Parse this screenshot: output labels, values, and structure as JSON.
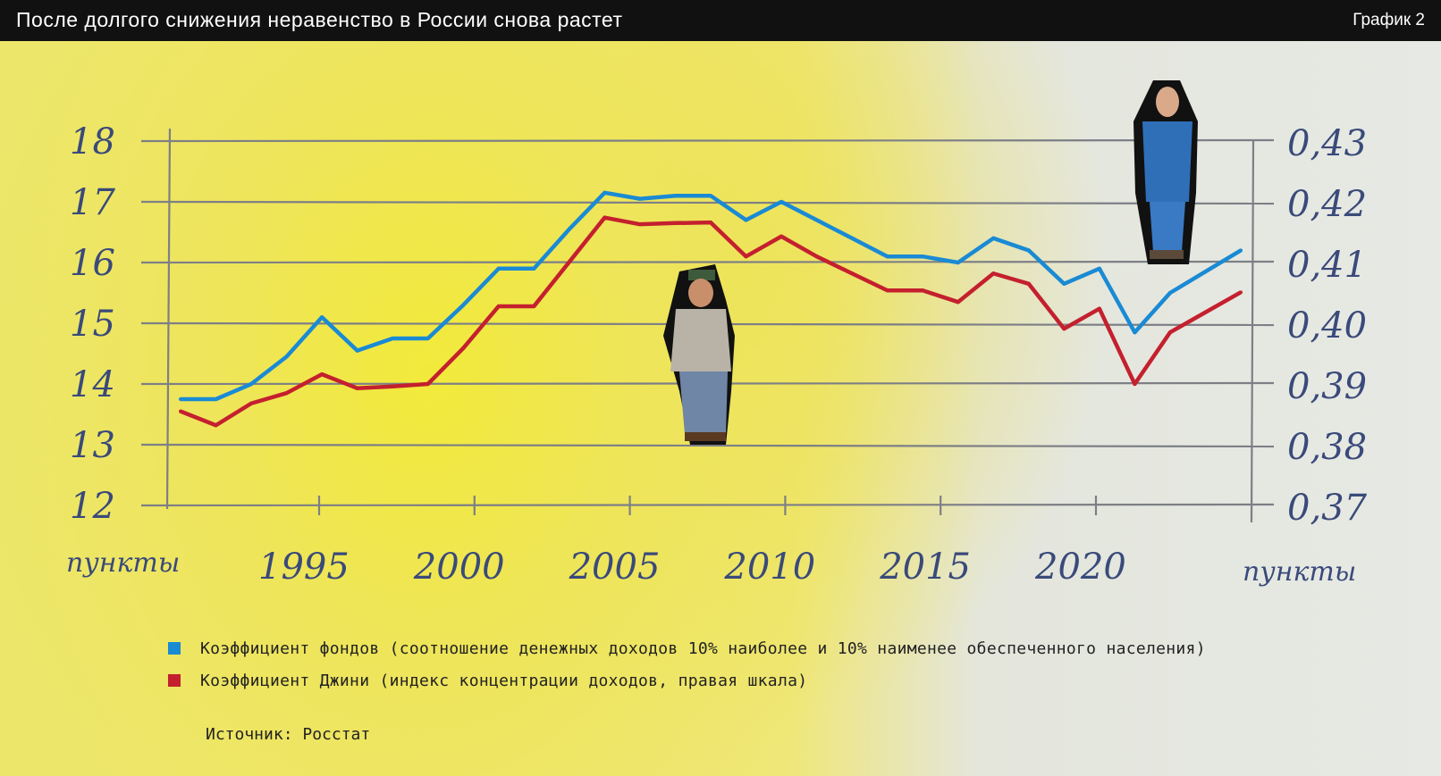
{
  "header": {
    "title": "После долгого снижения неравенство в России снова растет",
    "chart_number": "График 2"
  },
  "chart_data": {
    "type": "line",
    "x": [
      1993,
      1994,
      1995,
      1996,
      1997,
      1998,
      1999,
      2000,
      2001,
      2002,
      2003,
      2004,
      2005,
      2006,
      2007,
      2008,
      2009,
      2010,
      2011,
      2012,
      2013,
      2014,
      2015,
      2016,
      2017,
      2018,
      2019,
      2020,
      2021,
      2022,
      2023
    ],
    "x_ticks": [
      "1995",
      "2000",
      "2005",
      "2010",
      "2015",
      "2020"
    ],
    "y_left": {
      "label": "пункты",
      "ticks": [
        "12",
        "13",
        "14",
        "15",
        "16",
        "17",
        "18"
      ],
      "range": [
        12,
        18
      ]
    },
    "y_right": {
      "label": "пункты",
      "ticks": [
        "0,37",
        "0,38",
        "0,39",
        "0,40",
        "0,41",
        "0,42",
        "0,43"
      ],
      "range": [
        0.37,
        0.43
      ]
    },
    "grid": true,
    "series": [
      {
        "name": "Коэффициент фондов (соотношение денежных доходов 10% наиболее и 10% наименее обеспеченного населения)",
        "color": "#1a8ad4",
        "axis": "left",
        "values": [
          13.75,
          13.75,
          14.0,
          14.45,
          15.1,
          14.55,
          14.75,
          14.75,
          15.3,
          15.9,
          15.9,
          16.55,
          17.15,
          17.05,
          17.1,
          17.1,
          16.7,
          17.0,
          16.7,
          16.4,
          16.1,
          16.1,
          16.0,
          16.4,
          16.2,
          15.65,
          15.9,
          14.85,
          15.5,
          15.85,
          16.2
        ]
      },
      {
        "name": "Коэффициент Джини (индекс концентрации доходов, правая шкала)",
        "color": "#c4202e",
        "axis": "right",
        "values": [
          0.3855,
          0.3832,
          0.3868,
          0.3885,
          0.3916,
          0.3893,
          0.3896,
          0.39,
          0.3959,
          0.4028,
          0.4028,
          0.4101,
          0.4174,
          0.4163,
          0.4165,
          0.4166,
          0.411,
          0.4143,
          0.411,
          0.4082,
          0.4054,
          0.4054,
          0.4035,
          0.4082,
          0.4065,
          0.3991,
          0.4024,
          0.39,
          0.3985,
          0.4018,
          0.4051
        ]
      }
    ],
    "legend_placement": "bottom-left"
  },
  "source": "Источник: Росстат"
}
